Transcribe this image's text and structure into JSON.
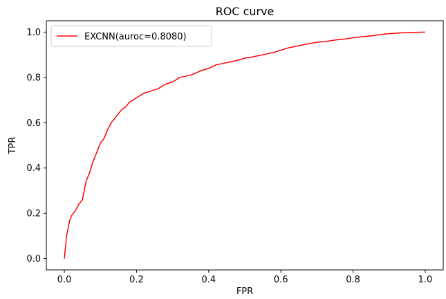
{
  "chart_data": {
    "type": "line",
    "title": "ROC curve",
    "xlabel": "FPR",
    "ylabel": "TPR",
    "xlim": [
      -0.05,
      1.05
    ],
    "ylim": [
      -0.05,
      1.05
    ],
    "xticks": [
      0.0,
      0.2,
      0.4,
      0.6,
      0.8,
      1.0
    ],
    "xtick_labels": [
      "0.0",
      "0.2",
      "0.4",
      "0.6",
      "0.8",
      "1.0"
    ],
    "yticks": [
      0.0,
      0.2,
      0.4,
      0.6,
      0.8,
      1.0
    ],
    "ytick_labels": [
      "0.0",
      "0.2",
      "0.4",
      "0.6",
      "0.8",
      "1.0"
    ],
    "grid": false,
    "legend_position": "upper left",
    "series": [
      {
        "name": "EXCNN(auroc=0.8080)",
        "color": "#ff0000",
        "x": [
          0.0,
          0.003,
          0.006,
          0.01,
          0.015,
          0.02,
          0.03,
          0.04,
          0.05,
          0.055,
          0.06,
          0.07,
          0.08,
          0.09,
          0.1,
          0.11,
          0.12,
          0.13,
          0.14,
          0.15,
          0.16,
          0.17,
          0.18,
          0.19,
          0.2,
          0.22,
          0.24,
          0.26,
          0.28,
          0.3,
          0.32,
          0.35,
          0.38,
          0.4,
          0.42,
          0.45,
          0.48,
          0.5,
          0.52,
          0.55,
          0.58,
          0.6,
          0.62,
          0.65,
          0.68,
          0.7,
          0.73,
          0.75,
          0.78,
          0.8,
          0.83,
          0.86,
          0.88,
          0.9,
          0.93,
          0.95,
          0.97,
          1.0
        ],
        "y": [
          0.0,
          0.05,
          0.1,
          0.13,
          0.17,
          0.19,
          0.21,
          0.24,
          0.26,
          0.3,
          0.34,
          0.38,
          0.43,
          0.47,
          0.51,
          0.53,
          0.57,
          0.6,
          0.62,
          0.64,
          0.66,
          0.67,
          0.69,
          0.7,
          0.71,
          0.73,
          0.74,
          0.75,
          0.77,
          0.78,
          0.8,
          0.81,
          0.83,
          0.84,
          0.855,
          0.865,
          0.875,
          0.885,
          0.89,
          0.9,
          0.91,
          0.92,
          0.93,
          0.94,
          0.95,
          0.955,
          0.96,
          0.965,
          0.97,
          0.975,
          0.98,
          0.985,
          0.99,
          0.993,
          0.996,
          0.998,
          0.999,
          1.0
        ]
      }
    ]
  }
}
